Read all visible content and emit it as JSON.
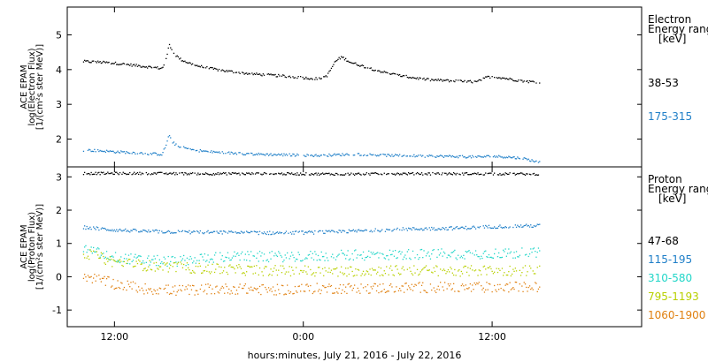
{
  "chart_data": [
    {
      "type": "scatter",
      "panel": "electron",
      "ylabel_lines": [
        "ACE EPAM",
        "log(Electron Flux)",
        "[1/(cm²s ster MeV)]"
      ],
      "ylim": [
        1.2,
        5.8
      ],
      "yticks": [
        2,
        3,
        4,
        5
      ],
      "legend_title_lines": [
        "Electron",
        "Energy ranges",
        "[keV]"
      ],
      "series": [
        {
          "name": "38-53",
          "color": "#000000",
          "points": [
            [
              -2.0,
              4.25
            ],
            [
              -1.0,
              4.23
            ],
            [
              0.0,
              4.2
            ],
            [
              1.0,
              4.15
            ],
            [
              2.0,
              4.1
            ],
            [
              3.0,
              4.05
            ],
            [
              3.25,
              4.3
            ],
            [
              3.45,
              4.75
            ],
            [
              3.6,
              4.6
            ],
            [
              3.8,
              4.45
            ],
            [
              4.2,
              4.3
            ],
            [
              5.0,
              4.15
            ],
            [
              6.0,
              4.05
            ],
            [
              7.0,
              3.98
            ],
            [
              8.0,
              3.92
            ],
            [
              9.0,
              3.88
            ],
            [
              10.0,
              3.85
            ],
            [
              11.0,
              3.82
            ],
            [
              12.0,
              3.78
            ],
            [
              13.0,
              3.75
            ],
            [
              13.5,
              3.85
            ],
            [
              14.0,
              4.25
            ],
            [
              14.4,
              4.38
            ],
            [
              15.0,
              4.22
            ],
            [
              16.0,
              4.08
            ],
            [
              17.0,
              3.95
            ],
            [
              18.0,
              3.85
            ],
            [
              19.0,
              3.78
            ],
            [
              20.0,
              3.72
            ],
            [
              21.0,
              3.7
            ],
            [
              22.0,
              3.68
            ],
            [
              23.0,
              3.66
            ],
            [
              23.5,
              3.78
            ],
            [
              24.0,
              3.82
            ],
            [
              25.0,
              3.75
            ],
            [
              26.0,
              3.68
            ],
            [
              27.0,
              3.65
            ]
          ]
        },
        {
          "name": "175-315",
          "color": "#1f7fc8",
          "points": [
            [
              -2.0,
              1.7
            ],
            [
              -1.0,
              1.68
            ],
            [
              0.0,
              1.65
            ],
            [
              1.0,
              1.63
            ],
            [
              2.0,
              1.6
            ],
            [
              3.0,
              1.58
            ],
            [
              3.25,
              1.85
            ],
            [
              3.45,
              2.15
            ],
            [
              3.6,
              1.95
            ],
            [
              4.0,
              1.8
            ],
            [
              5.0,
              1.7
            ],
            [
              6.0,
              1.65
            ],
            [
              7.0,
              1.62
            ],
            [
              8.0,
              1.6
            ],
            [
              9.0,
              1.58
            ],
            [
              10.0,
              1.57
            ],
            [
              11.0,
              1.56
            ],
            [
              12.0,
              1.55
            ],
            [
              13.0,
              1.54
            ],
            [
              14.0,
              1.56
            ],
            [
              15.0,
              1.58
            ],
            [
              16.0,
              1.57
            ],
            [
              17.0,
              1.55
            ],
            [
              18.0,
              1.54
            ],
            [
              19.0,
              1.53
            ],
            [
              20.0,
              1.52
            ],
            [
              21.0,
              1.52
            ],
            [
              22.0,
              1.51
            ],
            [
              23.0,
              1.5
            ],
            [
              24.0,
              1.52
            ],
            [
              25.0,
              1.5
            ],
            [
              26.0,
              1.45
            ],
            [
              27.0,
              1.35
            ]
          ]
        }
      ]
    },
    {
      "type": "scatter",
      "panel": "proton",
      "ylabel_lines": [
        "ACE EPAM",
        "log(Proton Flux)",
        "[1/(cm²s ster MeV)]"
      ],
      "ylim": [
        -1.5,
        3.3
      ],
      "yticks": [
        -1,
        0,
        1,
        2,
        3
      ],
      "legend_title_lines": [
        "Proton",
        "Energy ranges",
        "[keV]"
      ],
      "series": [
        {
          "name": "47-68",
          "color": "#000000",
          "points": [
            [
              -2.0,
              3.12
            ],
            [
              2.0,
              3.12
            ],
            [
              6.0,
              3.11
            ],
            [
              10.0,
              3.11
            ],
            [
              14.0,
              3.1
            ],
            [
              18.0,
              3.11
            ],
            [
              22.0,
              3.11
            ],
            [
              27.0,
              3.1
            ]
          ]
        },
        {
          "name": "115-195",
          "color": "#1f7fc8",
          "points": [
            [
              -2.0,
              1.5
            ],
            [
              0.0,
              1.42
            ],
            [
              2.0,
              1.38
            ],
            [
              4.0,
              1.36
            ],
            [
              6.0,
              1.35
            ],
            [
              8.0,
              1.34
            ],
            [
              10.0,
              1.33
            ],
            [
              12.0,
              1.34
            ],
            [
              14.0,
              1.36
            ],
            [
              16.0,
              1.4
            ],
            [
              18.0,
              1.44
            ],
            [
              20.0,
              1.46
            ],
            [
              22.0,
              1.48
            ],
            [
              24.0,
              1.52
            ],
            [
              27.0,
              1.55
            ]
          ]
        },
        {
          "name": "310-580",
          "color": "#22d6c8",
          "points": [
            [
              -2.0,
              0.85
            ],
            [
              0.0,
              0.6
            ],
            [
              2.0,
              0.5
            ],
            [
              4.0,
              0.48
            ],
            [
              5.0,
              0.55
            ],
            [
              6.0,
              0.6
            ],
            [
              8.0,
              0.62
            ],
            [
              10.0,
              0.62
            ],
            [
              12.0,
              0.63
            ],
            [
              14.0,
              0.65
            ],
            [
              16.0,
              0.67
            ],
            [
              18.0,
              0.68
            ],
            [
              20.0,
              0.7
            ],
            [
              22.0,
              0.7
            ],
            [
              24.0,
              0.72
            ],
            [
              27.0,
              0.72
            ]
          ]
        },
        {
          "name": "795-1193",
          "color": "#b8d000",
          "points": [
            [
              -2.0,
              0.75
            ],
            [
              0.0,
              0.45
            ],
            [
              2.0,
              0.35
            ],
            [
              4.0,
              0.3
            ],
            [
              6.0,
              0.25
            ],
            [
              8.0,
              0.22
            ],
            [
              10.0,
              0.2
            ],
            [
              12.0,
              0.2
            ],
            [
              14.0,
              0.18
            ],
            [
              16.0,
              0.2
            ],
            [
              18.0,
              0.2
            ],
            [
              20.0,
              0.2
            ],
            [
              22.0,
              0.19
            ],
            [
              24.0,
              0.2
            ],
            [
              27.0,
              0.2
            ]
          ]
        },
        {
          "name": "1060-1900",
          "color": "#e08010",
          "points": [
            [
              -2.0,
              0.05
            ],
            [
              0.0,
              -0.2
            ],
            [
              2.0,
              -0.35
            ],
            [
              4.0,
              -0.4
            ],
            [
              6.0,
              -0.35
            ],
            [
              8.0,
              -0.35
            ],
            [
              10.0,
              -0.38
            ],
            [
              12.0,
              -0.35
            ],
            [
              14.0,
              -0.33
            ],
            [
              16.0,
              -0.33
            ],
            [
              18.0,
              -0.32
            ],
            [
              20.0,
              -0.3
            ],
            [
              22.0,
              -0.32
            ],
            [
              24.0,
              -0.3
            ],
            [
              27.0,
              -0.3
            ]
          ]
        }
      ]
    }
  ],
  "x_axis": {
    "label": "hours:minutes, July 21, 2016 - July 22, 2016",
    "xlim": [
      -3.0,
      33.5
    ],
    "ticks": [
      {
        "value": 0,
        "label": "12:00"
      },
      {
        "value": 12,
        "label": "0:00"
      },
      {
        "value": 24,
        "label": "12:00"
      }
    ]
  }
}
